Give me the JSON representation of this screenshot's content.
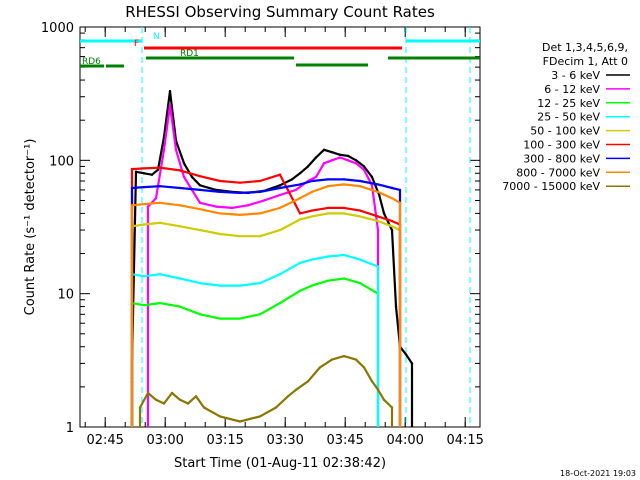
{
  "chart_data": {
    "type": "line",
    "title": "RHESSI Observing Summary Count Rates",
    "xlabel": "Start Time (01-Aug-11 02:38:42)",
    "ylabel": "Count Rate (s⁻¹ detector⁻¹)",
    "footer": "18-Oct-2021 19:03",
    "x_unit": "minutes from 02:38:42",
    "xlim": [
      0,
      100
    ],
    "ylim": [
      1,
      1000
    ],
    "y_scale": "log",
    "x_ticks": [
      {
        "x": 6.3,
        "label": "02:45"
      },
      {
        "x": 21.3,
        "label": "03:00"
      },
      {
        "x": 36.3,
        "label": "03:15"
      },
      {
        "x": 51.3,
        "label": "03:30"
      },
      {
        "x": 66.3,
        "label": "03:45"
      },
      {
        "x": 81.3,
        "label": "04:00"
      },
      {
        "x": 96.3,
        "label": "04:15"
      }
    ],
    "y_ticks": [
      {
        "y": 1,
        "label": "1"
      },
      {
        "y": 10,
        "label": "10"
      },
      {
        "y": 100,
        "label": "100"
      },
      {
        "y": 1000,
        "label": "1000"
      }
    ],
    "legend_header": [
      "Det 1,3,4,5,6,9,",
      "FDecim 1, Att 0"
    ],
    "legend_position": "right",
    "series": [
      {
        "name": "3 - 6 keV",
        "color": "#000000",
        "x": [
          13,
          14,
          16,
          18,
          19.5,
          21,
          22.5,
          24,
          26,
          28,
          30,
          34,
          38,
          42,
          46,
          50,
          53,
          55,
          57,
          59,
          61,
          63,
          65,
          67,
          69,
          71,
          73,
          74.8,
          76,
          78,
          79,
          80,
          81.5,
          83
        ],
        "y": [
          3,
          82,
          80,
          78,
          85,
          150,
          330,
          140,
          95,
          75,
          65,
          60,
          58,
          57,
          59,
          65,
          72,
          80,
          90,
          105,
          120,
          115,
          110,
          108,
          100,
          90,
          75,
          55,
          40,
          30,
          8,
          4,
          3.5,
          3
        ]
      },
      {
        "name": "6 - 12 keV",
        "color": "#ff00ff",
        "x": [
          17,
          19,
          21,
          22.5,
          24,
          26,
          28,
          30,
          34,
          38,
          42,
          46,
          50,
          54,
          57,
          59,
          61,
          63,
          65,
          67,
          69,
          71,
          73,
          74.5
        ],
        "y": [
          45,
          52,
          120,
          260,
          120,
          75,
          60,
          48,
          45,
          44,
          46,
          50,
          55,
          60,
          70,
          75,
          95,
          100,
          105,
          100,
          95,
          85,
          65,
          30
        ]
      },
      {
        "name": "12 - 25 keV",
        "color": "#00ff00",
        "x": [
          13,
          16,
          20,
          25,
          30,
          35,
          40,
          45,
          50,
          55,
          58,
          62,
          66,
          70,
          74.5
        ],
        "y": [
          8.5,
          8.2,
          8.5,
          8.0,
          7.0,
          6.5,
          6.5,
          7.0,
          8.5,
          10.5,
          11.5,
          12.5,
          13,
          12,
          10
        ]
      },
      {
        "name": "25 - 50 keV",
        "color": "#00ffff",
        "x": [
          13,
          16,
          20,
          25,
          30,
          35,
          40,
          45,
          50,
          55,
          58,
          62,
          66,
          70,
          74.5
        ],
        "y": [
          14,
          13.5,
          14,
          13,
          12,
          11.5,
          11.5,
          12,
          14,
          17,
          18,
          19,
          19.5,
          18,
          16
        ]
      },
      {
        "name": "50 - 100 keV",
        "color": "#cccc00",
        "x": [
          13,
          16,
          20,
          25,
          30,
          35,
          40,
          45,
          50,
          55,
          58,
          62,
          66,
          70,
          74.5,
          78,
          80
        ],
        "y": [
          32,
          33,
          34,
          32,
          30,
          28,
          27,
          27,
          30,
          36,
          38,
          40,
          40,
          38,
          35,
          32,
          30
        ]
      },
      {
        "name": "100 - 300 keV",
        "color": "#ff0000",
        "x": [
          13,
          16,
          20,
          25,
          30,
          35,
          40,
          45,
          50,
          55,
          58,
          62,
          66,
          70,
          74.5,
          78,
          80
        ],
        "y": [
          86,
          87,
          88,
          84,
          76,
          70,
          68,
          70,
          78,
          40,
          42,
          44,
          44,
          42,
          38,
          35,
          33
        ]
      },
      {
        "name": "300 - 800 keV",
        "color": "#0000ff",
        "x": [
          13,
          16,
          20,
          25,
          30,
          35,
          40,
          45,
          50,
          55,
          58,
          62,
          66,
          70,
          74.5,
          78,
          80
        ],
        "y": [
          62,
          63,
          64,
          62,
          60,
          58,
          57,
          58,
          62,
          66,
          70,
          72,
          72,
          70,
          66,
          62,
          60
        ]
      },
      {
        "name": "800 - 7000 keV",
        "color": "#ff8800",
        "x": [
          13,
          16,
          20,
          25,
          30,
          35,
          40,
          45,
          50,
          55,
          58,
          62,
          66,
          70,
          74.5,
          78,
          80
        ],
        "y": [
          46,
          47,
          48,
          46,
          43,
          40,
          39,
          40,
          44,
          52,
          58,
          64,
          66,
          64,
          58,
          52,
          48
        ]
      },
      {
        "name": "7000 - 15000 keV",
        "color": "#887700",
        "x": [
          15,
          17,
          19,
          21,
          23,
          25,
          27,
          29,
          31,
          35,
          40,
          45,
          49,
          52,
          54,
          57,
          60,
          63,
          66,
          69,
          71,
          73,
          74.5,
          76,
          78
        ],
        "y": [
          1.4,
          1.8,
          1.6,
          1.5,
          1.8,
          1.6,
          1.5,
          1.7,
          1.4,
          1.2,
          1.1,
          1.2,
          1.4,
          1.7,
          1.9,
          2.2,
          2.8,
          3.2,
          3.4,
          3.2,
          2.8,
          2.2,
          1.9,
          1.6,
          1.4
        ]
      }
    ],
    "state_bars": [
      {
        "label": "N",
        "color": "#00ffff",
        "segments": [
          [
            0,
            15.5
          ],
          [
            81.5,
            100
          ]
        ]
      },
      {
        "label": "F",
        "color": "#ff0000",
        "segments": [
          [
            16,
            80.5
          ]
        ]
      },
      {
        "label": "RD1",
        "color": "#008000",
        "segments": [
          [
            16.5,
            53.5
          ],
          [
            77,
            100
          ]
        ]
      },
      {
        "label": "",
        "color": "#008000",
        "segments": [
          [
            54,
            72
          ]
        ]
      },
      {
        "label": "RD6",
        "color": "#008000",
        "segments": [
          [
            0,
            6
          ],
          [
            6.5,
            11
          ]
        ]
      }
    ],
    "night_markers": [
      15.5,
      81.5,
      97.5
    ]
  }
}
